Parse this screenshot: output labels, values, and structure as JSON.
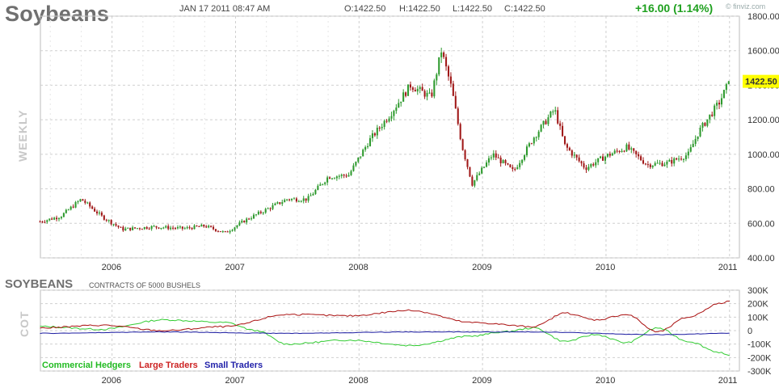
{
  "header": {
    "title": "Soybeans",
    "date": "JAN 17 2011 08:47 AM",
    "open": "O:1422.50",
    "high": "H:1422.50",
    "low": "L:1422.50",
    "close": "C:1422.50",
    "change": "+16.00 (1.14%)",
    "finviz": "© finviz.com"
  },
  "price_panel": {
    "period_label": "WEEKLY",
    "last_price_label": "1422.50"
  },
  "cot_panel": {
    "side_label": "COT",
    "title": "SOYBEANS",
    "subtitle": "CONTRACTS OF 5000 BUSHELS",
    "legend": [
      "Commercial Hedgers",
      "Large Traders",
      "Small Traders"
    ]
  },
  "colors": {
    "up": "#2e9a2e",
    "down": "#a01818",
    "commercial": "#33cc33",
    "large": "#aa1111",
    "small": "#1a1aa0",
    "grid": "#cfcfcf",
    "price_badge": "#ffff00"
  },
  "chart_data": [
    {
      "type": "candlestick",
      "title": "Soybeans",
      "frequency": "weekly",
      "x_ticks": [
        "2006",
        "2007",
        "2008",
        "2009",
        "2010",
        "2011"
      ],
      "y_ticks": [
        "400.00",
        "600.00",
        "800.00",
        "1000.00",
        "1200.00",
        "1400.00",
        "1600.00",
        "1800.00"
      ],
      "ylim": [
        400,
        1800
      ],
      "last": 1422.5,
      "approx_close_path": [
        [
          "2005-06",
          610
        ],
        [
          "2005-08",
          640
        ],
        [
          "2005-10",
          740
        ],
        [
          "2005-12",
          640
        ],
        [
          "2006-02",
          565
        ],
        [
          "2006-05",
          580
        ],
        [
          "2006-08",
          570
        ],
        [
          "2006-10",
          585
        ],
        [
          "2006-12",
          545
        ],
        [
          "2007-02",
          620
        ],
        [
          "2007-04",
          680
        ],
        [
          "2007-06",
          740
        ],
        [
          "2007-08",
          740
        ],
        [
          "2007-10",
          870
        ],
        [
          "2007-12",
          880
        ],
        [
          "2008-02",
          1080
        ],
        [
          "2008-04",
          1230
        ],
        [
          "2008-06",
          1400
        ],
        [
          "2008-08",
          1330
        ],
        [
          "2008-09",
          1600
        ],
        [
          "2008-10",
          1380
        ],
        [
          "2008-11",
          1050
        ],
        [
          "2008-12",
          830
        ],
        [
          "2009-02",
          1000
        ],
        [
          "2009-04",
          900
        ],
        [
          "2009-06",
          1100
        ],
        [
          "2009-08",
          1260
        ],
        [
          "2009-09",
          1050
        ],
        [
          "2009-11",
          920
        ],
        [
          "2010-01",
          990
        ],
        [
          "2010-03",
          1040
        ],
        [
          "2010-05",
          940
        ],
        [
          "2010-07",
          950
        ],
        [
          "2010-09",
          1000
        ],
        [
          "2010-10",
          1130
        ],
        [
          "2010-12",
          1300
        ],
        [
          "2011-01",
          1422.5
        ]
      ]
    },
    {
      "type": "line",
      "title": "SOYBEANS",
      "subtitle": "CONTRACTS OF 5000 BUSHELS",
      "x_ticks": [
        "2006",
        "2007",
        "2008",
        "2009",
        "2010",
        "2011"
      ],
      "y_ticks": [
        "300K",
        "200K",
        "100K",
        "0",
        "-100K",
        "-200K",
        "-300K"
      ],
      "ylim": [
        -300000,
        300000
      ],
      "series": [
        {
          "name": "Commercial Hedgers",
          "points": [
            [
              "2005-06",
              30000
            ],
            [
              "2005-12",
              10000
            ],
            [
              "2006-06",
              80000
            ],
            [
              "2006-12",
              60000
            ],
            [
              "2007-03",
              0
            ],
            [
              "2007-06",
              -100000
            ],
            [
              "2007-12",
              -70000
            ],
            [
              "2008-06",
              -110000
            ],
            [
              "2008-12",
              -40000
            ],
            [
              "2009-03",
              -10000
            ],
            [
              "2009-06",
              20000
            ],
            [
              "2009-09",
              -80000
            ],
            [
              "2009-12",
              -30000
            ],
            [
              "2010-03",
              -90000
            ],
            [
              "2010-06",
              20000
            ],
            [
              "2010-09",
              -80000
            ],
            [
              "2010-12",
              -160000
            ],
            [
              "2011-01",
              -190000
            ]
          ]
        },
        {
          "name": "Large Traders",
          "points": [
            [
              "2005-06",
              20000
            ],
            [
              "2005-12",
              40000
            ],
            [
              "2006-06",
              0
            ],
            [
              "2006-12",
              30000
            ],
            [
              "2007-06",
              120000
            ],
            [
              "2007-12",
              110000
            ],
            [
              "2008-06",
              150000
            ],
            [
              "2008-12",
              60000
            ],
            [
              "2009-06",
              30000
            ],
            [
              "2009-09",
              130000
            ],
            [
              "2009-12",
              80000
            ],
            [
              "2010-03",
              120000
            ],
            [
              "2010-06",
              -10000
            ],
            [
              "2010-09",
              100000
            ],
            [
              "2010-12",
              200000
            ],
            [
              "2011-01",
              220000
            ]
          ]
        },
        {
          "name": "Small Traders",
          "points": [
            [
              "2005-06",
              -20000
            ],
            [
              "2006-06",
              -10000
            ],
            [
              "2007-06",
              -20000
            ],
            [
              "2008-06",
              -10000
            ],
            [
              "2009-06",
              -10000
            ],
            [
              "2010-06",
              -30000
            ],
            [
              "2011-01",
              -20000
            ]
          ]
        }
      ]
    }
  ]
}
